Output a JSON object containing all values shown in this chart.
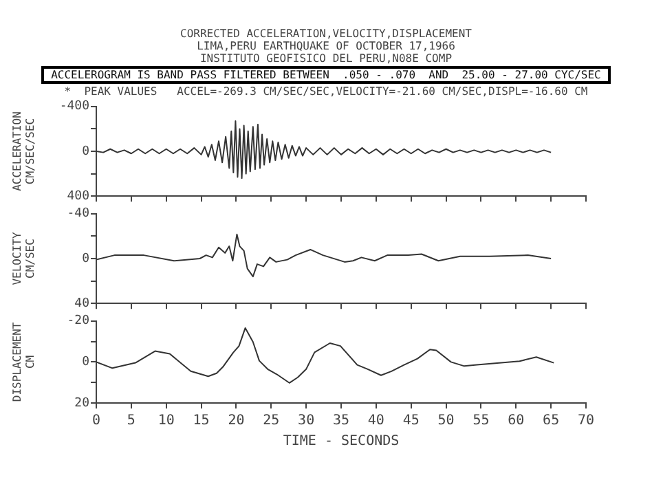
{
  "chart_data": [
    {
      "type": "line",
      "title": "CORRECTED ACCELERATION,VELOCITY,DISPLACEMENT",
      "subtitle": "LIMA,PERU EARTHQUAKE OF OCTOBER 17,1966",
      "annotations": [
        "INSTITUTO GEOFISICO DEL PERU,N08E COMP",
        "ACCELEROGRAM IS BAND PASS FILTERED BETWEEN  .050 - .070  AND  25.00 - 27.00 CYC/SEC",
        "*  PEAK VALUES   ACCEL=-269.3 CM/SEC/SEC,VELOCITY=-21.60 CM/SEC,DISPL=-16.60 CM"
      ],
      "ylabel": "ACCELERATION CM/SEC/SEC",
      "xlim": [
        0,
        70
      ],
      "xticks": [
        0,
        5,
        10,
        15,
        20,
        25,
        30,
        35,
        40,
        45,
        50,
        55,
        60,
        65,
        70
      ],
      "ylim": [
        400,
        -400
      ],
      "yticks": [
        -400,
        {
          "value": -200,
          "label": null
        },
        0,
        {
          "value": 200,
          "label": null
        },
        400
      ],
      "tick_labels": "y",
      "grid": false,
      "marker": "none",
      "line_style": "solid",
      "legend": false,
      "series": [
        {
          "color": "#333333",
          "x": [
            0,
            1,
            2,
            3,
            4,
            5,
            6,
            7,
            8,
            9,
            10,
            11,
            12,
            13,
            14,
            15,
            15.5,
            16,
            16.5,
            17,
            17.5,
            18,
            18.5,
            19,
            19.3,
            19.6,
            19.9,
            20.2,
            20.5,
            20.8,
            21.1,
            21.4,
            21.7,
            22,
            22.4,
            22.7,
            23.1,
            23.4,
            23.7,
            24,
            24.4,
            24.8,
            25.2,
            25.6,
            26,
            26.5,
            27,
            27.5,
            28,
            28.5,
            29,
            29.5,
            30,
            31,
            32,
            33,
            34,
            35,
            36,
            37,
            38,
            39,
            40,
            41,
            42,
            43,
            44,
            45,
            46,
            47,
            48,
            49,
            50,
            51,
            52,
            53,
            54,
            55,
            56,
            57,
            58,
            59,
            60,
            61,
            62,
            63,
            64,
            65
          ],
          "values": [
            0,
            10,
            -20,
            10,
            -10,
            20,
            -20,
            20,
            -20,
            20,
            -20,
            20,
            -20,
            20,
            -30,
            30,
            -40,
            50,
            -60,
            80,
            -90,
            100,
            -130,
            150,
            -180,
            190,
            -269.3,
            230,
            -200,
            240,
            -230,
            200,
            -180,
            180,
            -220,
            160,
            -240,
            150,
            -150,
            120,
            -110,
            100,
            -90,
            80,
            -80,
            70,
            -60,
            60,
            -50,
            40,
            -40,
            40,
            -30,
            30,
            -30,
            30,
            -30,
            30,
            -20,
            20,
            -30,
            20,
            -20,
            30,
            -20,
            20,
            -20,
            20,
            -20,
            20,
            -10,
            10,
            -20,
            10,
            -10,
            10,
            -10,
            10,
            -10,
            10,
            -10,
            10,
            -10,
            10,
            -10,
            10,
            -10,
            10
          ]
        }
      ]
    },
    {
      "type": "line",
      "ylabel": "VELOCITY CM/SEC",
      "xlim": [
        0,
        70
      ],
      "xticks": [
        0,
        5,
        10,
        15,
        20,
        25,
        30,
        35,
        40,
        45,
        50,
        55,
        60,
        65,
        70
      ],
      "ylim": [
        40,
        -40
      ],
      "yticks": [
        -40,
        {
          "value": -20,
          "label": null
        },
        0,
        {
          "value": 20,
          "label": null
        },
        40
      ],
      "tick_labels": "y",
      "grid": false,
      "marker": "none",
      "line_style": "solid",
      "legend": false,
      "series": [
        {
          "color": "#333333",
          "x": [
            0,
            2.6,
            6.8,
            11.1,
            14.8,
            15.7,
            16.6,
            17.5,
            18.4,
            19,
            19.5,
            20.1,
            20.5,
            21.1,
            21.6,
            22.4,
            23,
            23.9,
            24.8,
            25.7,
            27.3,
            28.5,
            30.6,
            32.4,
            35.5,
            36.7,
            37.9,
            39.8,
            41.6,
            44.6,
            46.5,
            48.9,
            52,
            56.2,
            61.7,
            65
          ],
          "values": [
            1,
            -3,
            -3,
            2,
            0,
            -3,
            -1,
            -10,
            -5,
            -11,
            2,
            -21.6,
            -11,
            -7,
            9,
            16,
            5,
            7,
            -1,
            3,
            1,
            -3,
            -8,
            -3,
            3,
            2,
            -1,
            2,
            -3,
            -3,
            -4,
            2,
            -2,
            -2,
            -3,
            0
          ]
        }
      ]
    },
    {
      "type": "line",
      "ylabel": "DISPLACEMENT CM",
      "xlabel": "TIME - SECONDS",
      "xlim": [
        0,
        70
      ],
      "xticks": [
        0,
        5,
        10,
        15,
        20,
        25,
        30,
        35,
        40,
        45,
        50,
        55,
        60,
        65,
        70
      ],
      "ylim": [
        20,
        -20
      ],
      "yticks": [
        -20,
        {
          "value": -10,
          "label": null
        },
        0,
        {
          "value": 10,
          "label": null
        },
        20
      ],
      "grid": false,
      "marker": "none",
      "line_style": "solid",
      "legend": false,
      "series": [
        {
          "color": "#333333",
          "x": [
            0,
            2.3,
            5.6,
            8.4,
            10.5,
            13.5,
            16,
            17.2,
            18.1,
            19.6,
            20.4,
            21.3,
            22.4,
            23.3,
            24.5,
            25.8,
            27.6,
            28.8,
            30,
            31.2,
            33.4,
            34.9,
            37.3,
            38.8,
            40.7,
            42.2,
            44,
            45.9,
            47.7,
            48.6,
            50.7,
            52.6,
            54.4,
            60.5,
            62.9,
            65.4
          ],
          "values": [
            0,
            3,
            0.4,
            -5.3,
            -4,
            4.5,
            7,
            5.5,
            2.4,
            -4.7,
            -7.8,
            -16.6,
            -9.8,
            -0.6,
            3.5,
            6,
            10.2,
            7.5,
            3.5,
            -4.7,
            -9.2,
            -7.8,
            1.4,
            3.5,
            6.5,
            4.5,
            1.4,
            -1.6,
            -6.1,
            -5.7,
            0,
            2,
            1.4,
            -0.4,
            -2.4,
            0.4
          ]
        }
      ]
    }
  ]
}
